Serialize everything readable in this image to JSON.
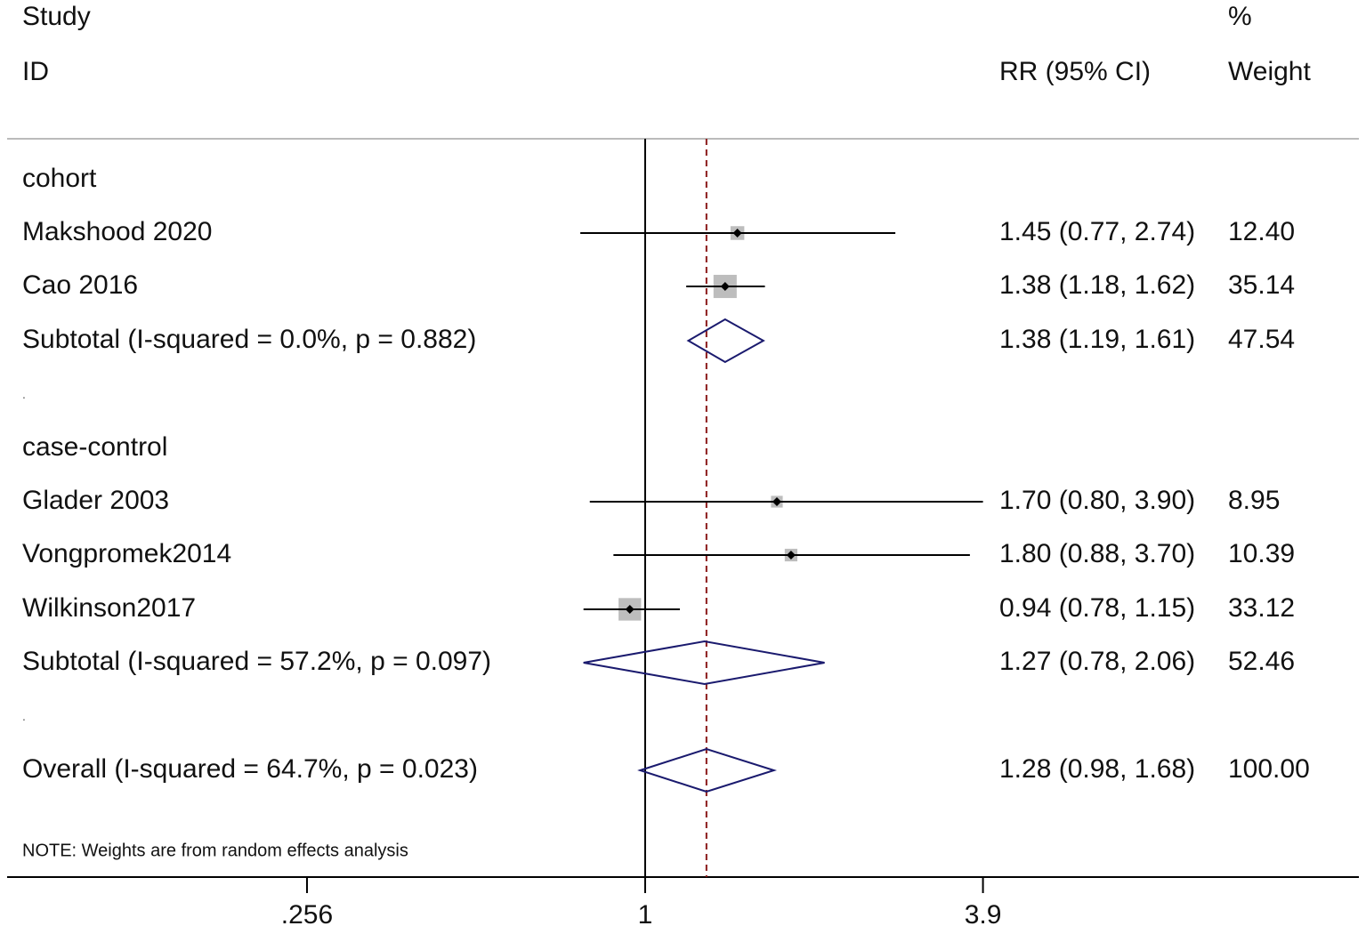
{
  "chart_data": {
    "type": "forest",
    "headers": {
      "study": "Study",
      "id": "ID",
      "ci": "RR (95% CI)",
      "pct": "%",
      "weight": "Weight"
    },
    "scale": "log",
    "null_value": 1,
    "overall_line_value": 1.28,
    "x_ticks": [
      {
        "value": 0.256,
        "label": ".256"
      },
      {
        "value": 1,
        "label": "1"
      },
      {
        "value": 3.9,
        "label": "3.9"
      }
    ],
    "rows": [
      {
        "kind": "group",
        "label": "cohort"
      },
      {
        "kind": "study",
        "label": "Makshood 2020",
        "rr": 1.45,
        "lo": 0.77,
        "hi": 2.74,
        "ci_text": "1.45 (0.77, 2.74)",
        "weight": "12.40"
      },
      {
        "kind": "study",
        "label": "Cao 2016",
        "rr": 1.38,
        "lo": 1.18,
        "hi": 1.62,
        "ci_text": "1.38 (1.18, 1.62)",
        "weight": "35.14"
      },
      {
        "kind": "subtotal",
        "label": "Subtotal  (I-squared = 0.0%, p = 0.882)",
        "rr": 1.38,
        "lo": 1.19,
        "hi": 1.61,
        "ci_text": "1.38 (1.19, 1.61)",
        "weight": "47.54"
      },
      {
        "kind": "spacer",
        "label": "."
      },
      {
        "kind": "group",
        "label": "case-control"
      },
      {
        "kind": "study",
        "label": "Glader 2003",
        "rr": 1.7,
        "lo": 0.8,
        "hi": 3.9,
        "ci_text": "1.70 (0.80, 3.90)",
        "weight": "8.95"
      },
      {
        "kind": "study",
        "label": "Vongpromek2014",
        "rr": 1.8,
        "lo": 0.88,
        "hi": 3.7,
        "ci_text": "1.80 (0.88, 3.70)",
        "weight": "10.39"
      },
      {
        "kind": "study",
        "label": "Wilkinson2017",
        "rr": 0.94,
        "lo": 0.78,
        "hi": 1.15,
        "ci_text": "0.94 (0.78, 1.15)",
        "weight": "33.12"
      },
      {
        "kind": "subtotal",
        "label": "Subtotal  (I-squared = 57.2%, p = 0.097)",
        "rr": 1.27,
        "lo": 0.78,
        "hi": 2.06,
        "ci_text": "1.27 (0.78, 2.06)",
        "weight": "52.46"
      },
      {
        "kind": "spacer",
        "label": "."
      },
      {
        "kind": "overall",
        "label": "Overall  (I-squared = 64.7%, p = 0.023)",
        "rr": 1.28,
        "lo": 0.98,
        "hi": 1.68,
        "ci_text": "1.28 (0.98, 1.68)",
        "weight": "100.00"
      }
    ],
    "note": "NOTE: Weights are from random effects analysis",
    "colors": {
      "diamond": "#1a1a6e",
      "box": "#bdbdbd",
      "overall_line": "#8b1a1a",
      "axis": "#000000",
      "top_rule": "#bbbbbb"
    }
  }
}
